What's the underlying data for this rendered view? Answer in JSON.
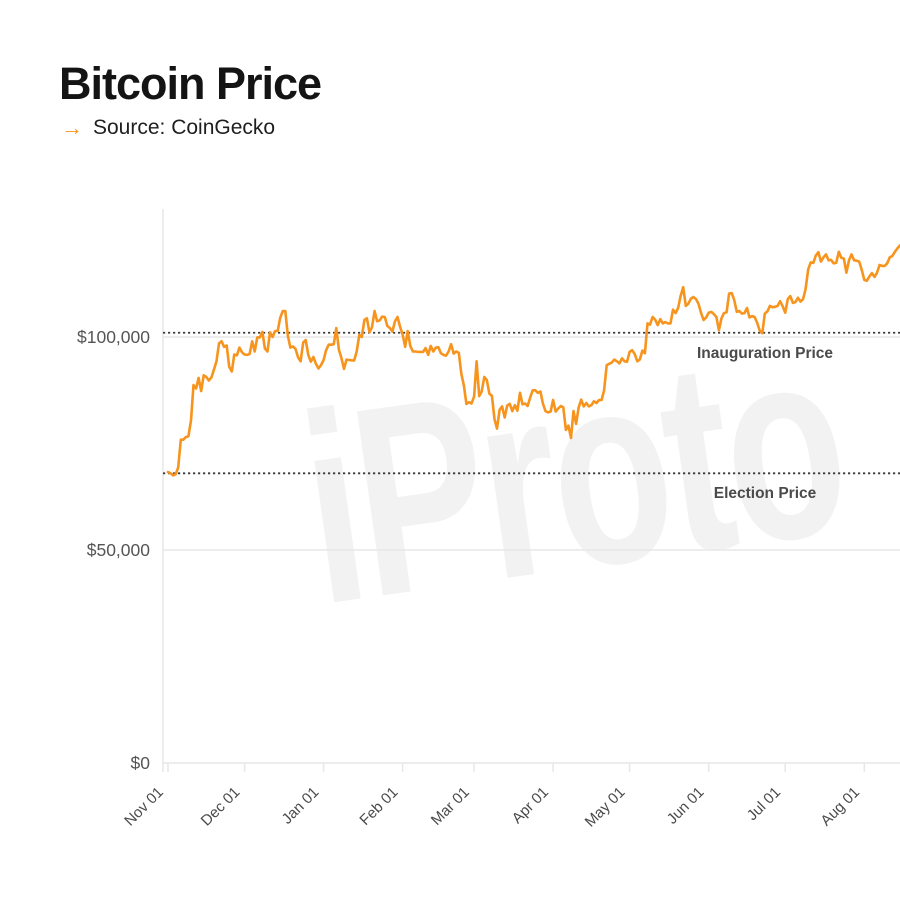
{
  "page": {
    "title": "Bitcoin Price",
    "source_prefix": "→",
    "source_label": "Source: CoinGecko",
    "watermark": "iProto"
  },
  "colors": {
    "accent": "#F7941D",
    "line": "#F7941D",
    "grid": "#e7e7e7",
    "axis_text": "#555555",
    "x_axis_text": "#4a4a4a",
    "annotation_text": "#4a4a4a",
    "reference_line": "#3a3a3a",
    "title_text": "#141414",
    "watermark": "#f2f2f2"
  },
  "chart_data": {
    "type": "line",
    "series_name": "Bitcoin price, USD",
    "cadence": "daily",
    "start_label": "Nov 01",
    "end_label": "mid Aug",
    "x_tick_labels": [
      "Nov 01",
      "Dec 01",
      "Jan 01",
      "Feb 01",
      "Mar 01",
      "Apr 01",
      "May 01",
      "Jun 01",
      "Jul 01",
      "Aug 01"
    ],
    "x_tick_day_offsets": [
      0,
      30,
      61,
      92,
      120,
      151,
      181,
      212,
      242,
      273
    ],
    "y_tick_labels": [
      "$0",
      "$50,000",
      "$100,000"
    ],
    "y_tick_values": [
      0,
      50000,
      100000
    ],
    "ylim": [
      0,
      130000
    ],
    "grid": true,
    "legend": false,
    "reference_lines": [
      {
        "label": "Inauguration Price",
        "value": 101000
      },
      {
        "label": "Election Price",
        "value": 68000
      }
    ],
    "values": [
      68300,
      68000,
      67500,
      67800,
      69400,
      75900,
      75900,
      76500,
      76700,
      80400,
      88700,
      87900,
      90400,
      87300,
      91000,
      90600,
      89800,
      90500,
      92300,
      94300,
      98500,
      99000,
      97700,
      98000,
      93000,
      91900,
      95900,
      95700,
      97500,
      96400,
      95900,
      95800,
      96000,
      99000,
      96600,
      99900,
      99900,
      101200,
      97300,
      96600,
      101100,
      100000,
      101400,
      101400,
      104500,
      106100,
      106100,
      100200,
      97500,
      97800,
      97200,
      95200,
      94300,
      98700,
      99300,
      95800,
      94200,
      95300,
      93700,
      92600,
      93400,
      94600,
      96900,
      98200,
      98200,
      98300,
      102100,
      97000,
      95100,
      92500,
      94700,
      94600,
      94500,
      94500,
      96600,
      100500,
      100000,
      104000,
      104400,
      101100,
      102300,
      106100,
      103700,
      103900,
      104800,
      104700,
      102600,
      102100,
      101300,
      103700,
      104700,
      102400,
      100600,
      97700,
      101400,
      97900,
      96600,
      96600,
      96500,
      96500,
      96500,
      97400,
      95800,
      97900,
      96600,
      97500,
      97600,
      96200,
      95800,
      95600,
      96600,
      98300,
      96100,
      96600,
      96300,
      91400,
      88600,
      84300,
      84700,
      84400,
      86000,
      94300,
      86100,
      87200,
      90600,
      89900,
      86700,
      86200,
      80700,
      78500,
      82900,
      83700,
      81100,
      83900,
      84300,
      82600,
      84000,
      82700,
      86900,
      84200,
      84400,
      83800,
      85800,
      87500,
      87500,
      86900,
      87200,
      84400,
      82600,
      82300,
      82500,
      85200,
      82500,
      83200,
      83800,
      83500,
      78200,
      79200,
      76300,
      82600,
      79600,
      83400,
      85300,
      83700,
      84500,
      83700,
      84000,
      84900,
      84500,
      85200,
      85200,
      87500,
      93400,
      93700,
      94000,
      94700,
      94300,
      93800,
      95000,
      94300,
      94200,
      96500,
      96900,
      96000,
      94300,
      94700,
      96800,
      96200,
      103200,
      102900,
      104700,
      104100,
      102800,
      104200,
      103200,
      103500,
      103200,
      103200,
      106400,
      105600,
      106800,
      109700,
      111700,
      107300,
      107800,
      109000,
      109400,
      108900,
      107800,
      105600,
      104000,
      104600,
      105700,
      105900,
      105400,
      104700,
      101600,
      104400,
      105600,
      105800,
      110200,
      110300,
      108700,
      105900,
      106100,
      105500,
      105600,
      106800,
      104600,
      104900,
      104700,
      103300,
      101500,
      100900,
      105500,
      106000,
      107300,
      107000,
      107100,
      107300,
      108400,
      107200,
      105700,
      108900,
      109600,
      108000,
      108200,
      109200,
      108300,
      108900,
      111300,
      115900,
      117500,
      117400,
      119100,
      119900,
      117700,
      118700,
      119400,
      118000,
      118100,
      117300,
      117400,
      120000,
      118600,
      118400,
      115100,
      118000,
      119400,
      118000,
      117900,
      117700,
      115800,
      113400,
      113200,
      114200,
      115000,
      114100,
      115100,
      116900,
      116700,
      116700,
      117300,
      118700,
      119000,
      120000,
      120800,
      121500
    ]
  }
}
